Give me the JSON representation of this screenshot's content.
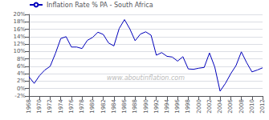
{
  "chart_data": {
    "type": "line",
    "x": [
      1968,
      1969,
      1970,
      1971,
      1972,
      1973,
      1974,
      1975,
      1976,
      1977,
      1978,
      1979,
      1980,
      1981,
      1982,
      1983,
      1984,
      1985,
      1986,
      1987,
      1988,
      1989,
      1990,
      1991,
      1992,
      1993,
      1994,
      1995,
      1996,
      1997,
      1998,
      1999,
      2000,
      2001,
      2002,
      2003,
      2004,
      2005,
      2006,
      2007,
      2008,
      2009,
      2010,
      2011,
      2012
    ],
    "series": [
      {
        "name": "Inflation Rate % PA - South Africa",
        "color": "#0000bb",
        "values": [
          3.2,
          1.4,
          3.5,
          5.0,
          6.0,
          9.5,
          13.5,
          14.0,
          11.2,
          11.2,
          10.8,
          13.0,
          13.8,
          15.2,
          14.6,
          12.3,
          11.5,
          16.2,
          18.6,
          16.1,
          12.9,
          14.7,
          15.3,
          14.4,
          9.0,
          9.7,
          8.7,
          8.5,
          7.4,
          8.6,
          5.3,
          5.2,
          5.5,
          5.7,
          9.6,
          5.8,
          -0.7,
          1.4,
          4.0,
          6.2,
          9.9,
          7.0,
          4.5,
          5.0,
          5.6
        ]
      }
    ],
    "xlim": [
      1968,
      2012
    ],
    "xticks": [
      1968,
      1970,
      1972,
      1974,
      1976,
      1978,
      1980,
      1982,
      1984,
      1986,
      1988,
      1990,
      1992,
      1994,
      1996,
      1998,
      2000,
      2002,
      2004,
      2006,
      2008,
      2010,
      2012
    ],
    "ylim": [
      -2,
      20
    ],
    "yticks": [
      {
        "value": -2,
        "label": "-2%"
      },
      {
        "value": 0,
        "label": "0%"
      },
      {
        "value": 2,
        "label": "2%"
      },
      {
        "value": 4,
        "label": "4%"
      },
      {
        "value": 6,
        "label": "6%"
      },
      {
        "value": 8,
        "label": "8%"
      },
      {
        "value": 10,
        "label": "10%"
      },
      {
        "value": 12,
        "label": "12%"
      },
      {
        "value": 14,
        "label": "14%"
      },
      {
        "value": 16,
        "label": "16%"
      },
      {
        "value": 18,
        "label": "18%"
      },
      {
        "value": 20,
        "label": "20%"
      }
    ],
    "grid": true,
    "legend": "upper left",
    "annotations": [
      "www.aboutinflation.com"
    ]
  }
}
